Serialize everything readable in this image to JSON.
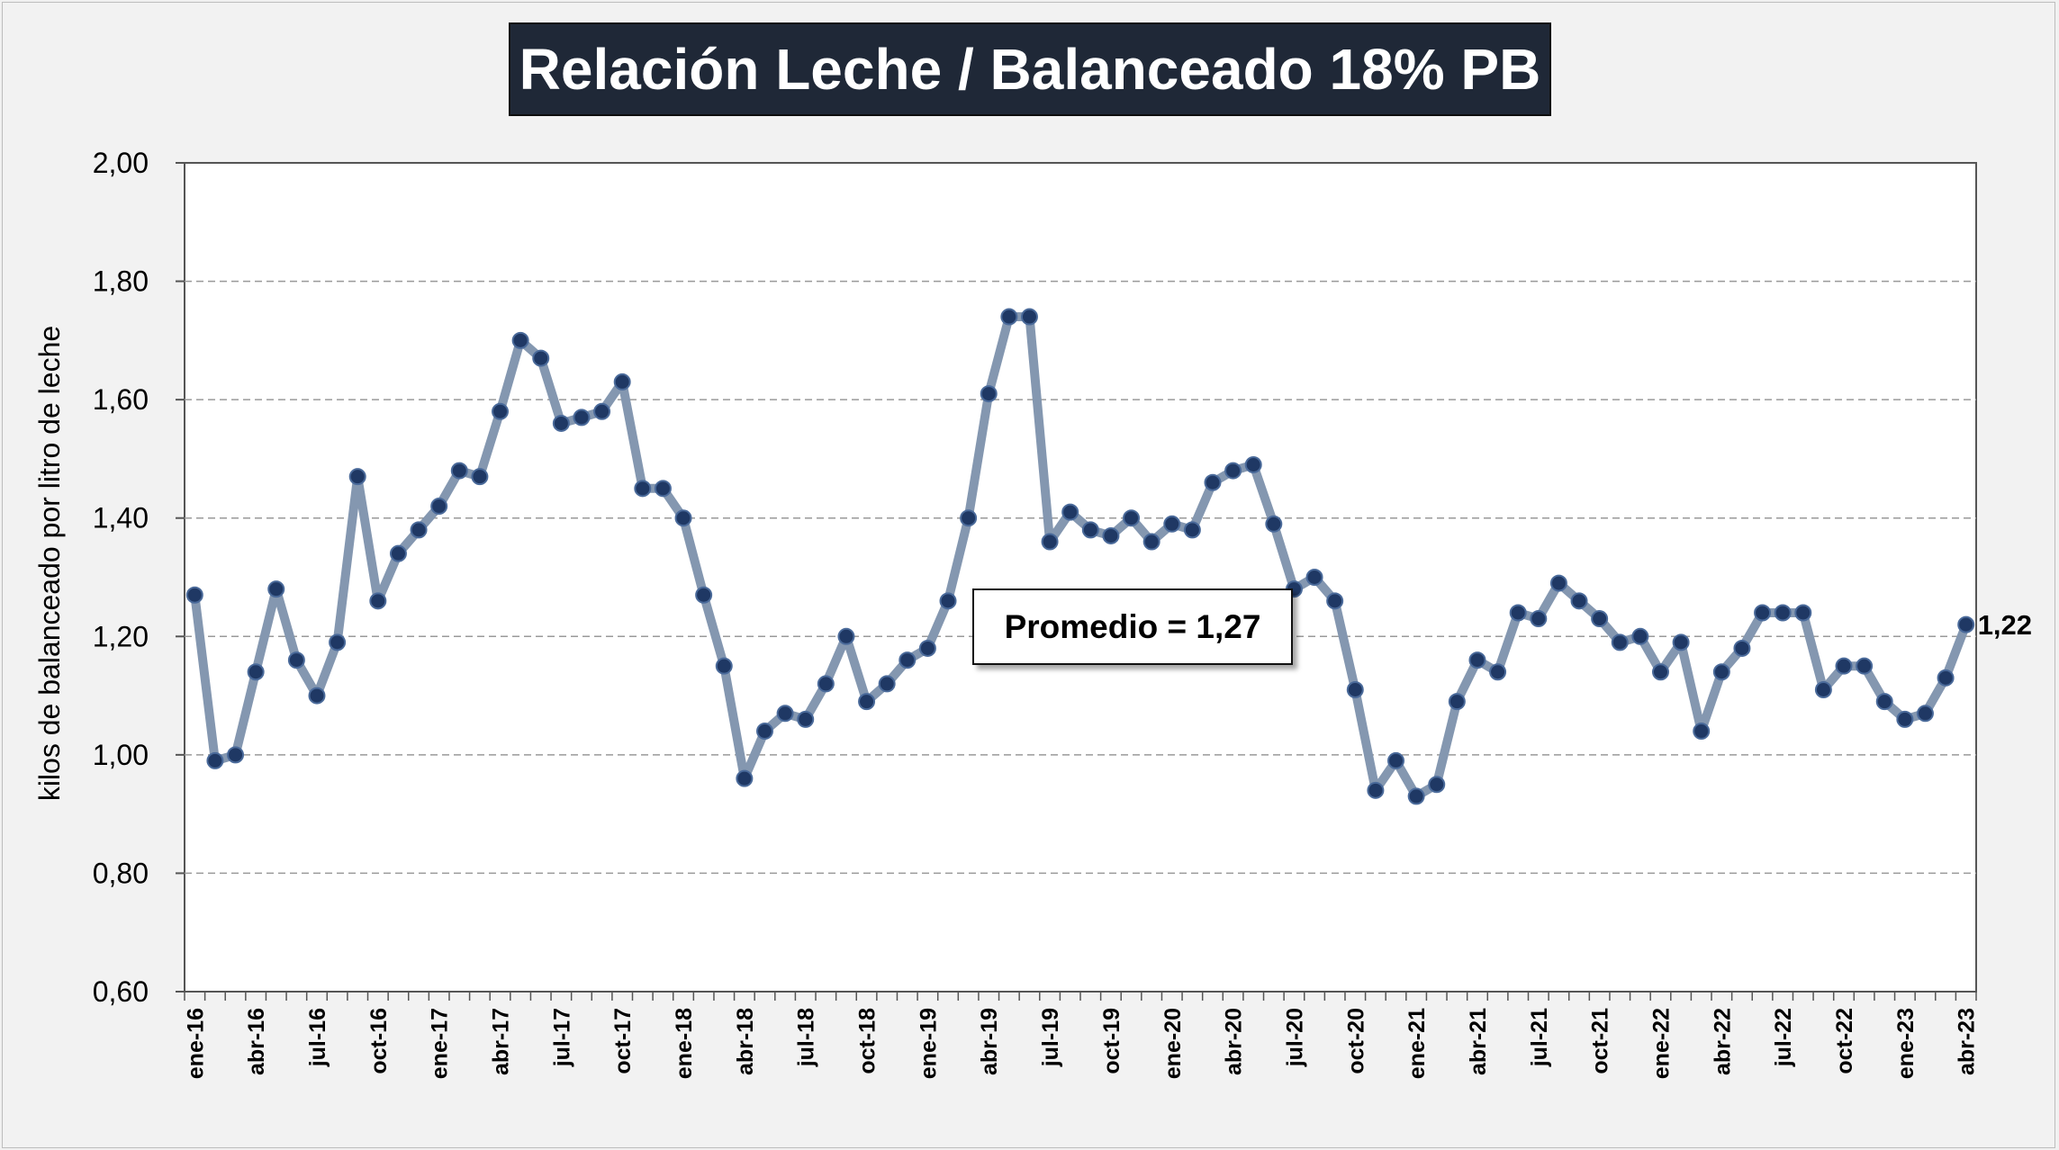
{
  "title": "Relación Leche / Balanceado 18% PB",
  "chart_data": {
    "type": "line",
    "title": "Relación Leche / Balanceado 18% PB",
    "xlabel": "",
    "ylabel": "kilos de balanceado por litro de leche",
    "ylim": [
      0.6,
      2.0
    ],
    "y_ticks": [
      "0,60",
      "0,80",
      "1,00",
      "1,20",
      "1,40",
      "1,60",
      "1,80",
      "2,00"
    ],
    "grid": "horizontal dashed",
    "x_tick_labels": [
      "ene-16",
      "abr-16",
      "jul-16",
      "oct-16",
      "ene-17",
      "abr-17",
      "jul-17",
      "oct-17",
      "ene-18",
      "abr-18",
      "jul-18",
      "oct-18",
      "ene-19",
      "abr-19",
      "jul-19",
      "oct-19",
      "ene-20",
      "abr-20",
      "jul-20",
      "oct-20",
      "ene-21",
      "abr-21",
      "jul-21",
      "oct-21",
      "ene-22",
      "abr-22",
      "jul-22",
      "oct-22",
      "ene-23",
      "abr-23"
    ],
    "series": [
      {
        "color": "#8497b0",
        "marker_color": "#1f3864",
        "values": [
          1.27,
          0.99,
          1.0,
          1.14,
          1.28,
          1.16,
          1.1,
          1.19,
          1.47,
          1.26,
          1.34,
          1.38,
          1.42,
          1.48,
          1.47,
          1.58,
          1.7,
          1.67,
          1.56,
          1.57,
          1.58,
          1.63,
          1.45,
          1.45,
          1.4,
          1.27,
          1.15,
          0.96,
          1.04,
          1.07,
          1.06,
          1.12,
          1.2,
          1.09,
          1.12,
          1.16,
          1.18,
          1.26,
          1.4,
          1.61,
          1.74,
          1.74,
          1.36,
          1.41,
          1.38,
          1.37,
          1.4,
          1.36,
          1.39,
          1.38,
          1.46,
          1.48,
          1.49,
          1.39,
          1.28,
          1.3,
          1.26,
          1.11,
          0.94,
          0.99,
          0.93,
          0.95,
          1.09,
          1.16,
          1.14,
          1.24,
          1.23,
          1.29,
          1.26,
          1.23,
          1.19,
          1.2,
          1.14,
          1.19,
          1.04,
          1.14,
          1.18,
          1.24,
          1.24,
          1.24,
          1.11,
          1.15,
          1.15,
          1.09,
          1.06,
          1.07,
          1.13,
          1.22
        ]
      }
    ],
    "average_label": "Promedio = 1,27",
    "last_value_label": "1,22"
  }
}
